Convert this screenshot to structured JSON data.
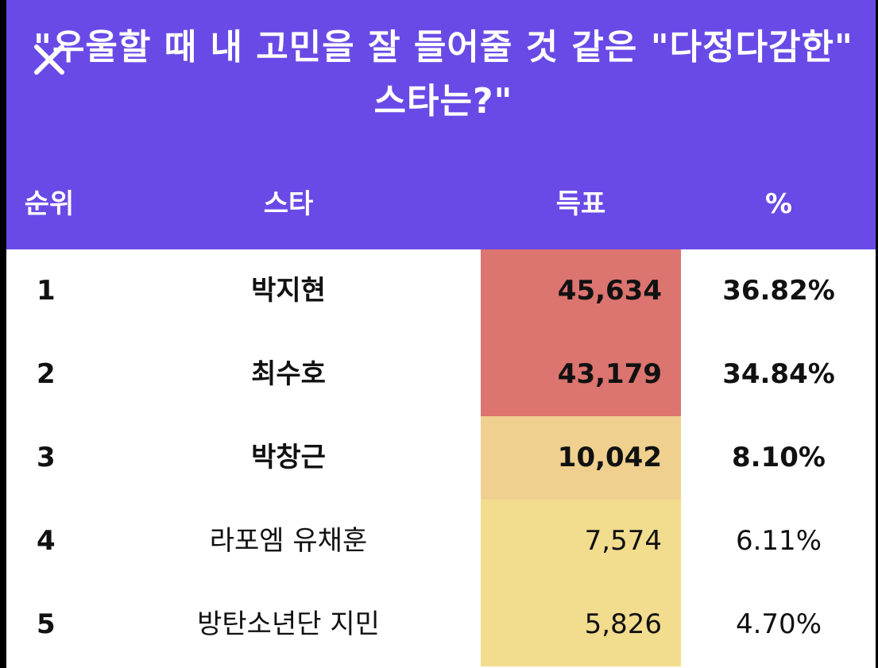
{
  "title": "\"우울할 때 내 고민을 잘 들어줄 것 같은 \"다정다감한\" 스타는?\"",
  "close_icon": "close-icon",
  "columns": {
    "rank": "순위",
    "star": "스타",
    "votes": "득표",
    "percent": "%"
  },
  "rows": [
    {
      "rank": "1",
      "star": "박지현",
      "votes": "45,634",
      "percent": "36.82%"
    },
    {
      "rank": "2",
      "star": "최수호",
      "votes": "43,179",
      "percent": "34.84%"
    },
    {
      "rank": "3",
      "star": "박창근",
      "votes": "10,042",
      "percent": "8.10%"
    },
    {
      "rank": "4",
      "star": "라포엠 유채훈",
      "votes": "7,574",
      "percent": "6.11%"
    },
    {
      "rank": "5",
      "star": "방탄소년단 지민",
      "votes": "5,826",
      "percent": "4.70%"
    }
  ],
  "colors": {
    "header": "#6a4ae6",
    "heat_high": "#dc7470",
    "heat_mid": "#efd08e",
    "heat_low": "#f2dc8e"
  }
}
